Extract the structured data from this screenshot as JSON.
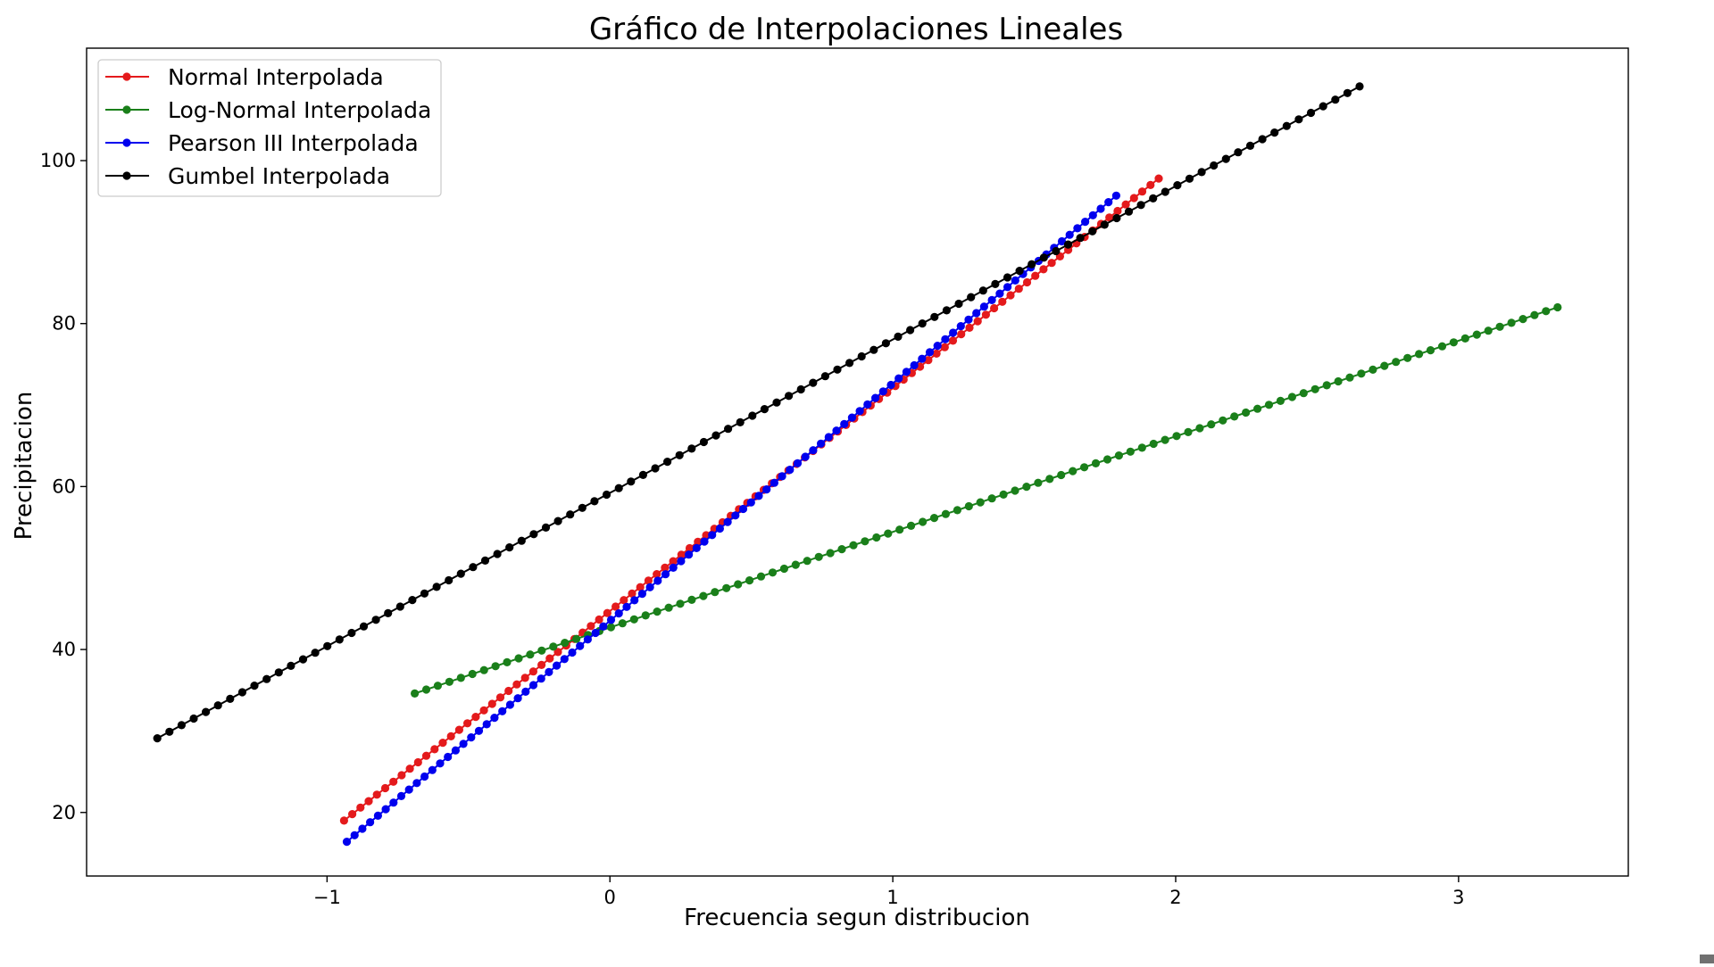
{
  "chart_data": {
    "type": "line",
    "title": "Gráfico de Interpolaciones Lineales",
    "xlabel": "Frecuencia segun distribucion",
    "ylabel": "Precipitacion",
    "xlim": [
      -1.85,
      3.6
    ],
    "ylim": [
      12.2,
      113.8
    ],
    "xticks": [
      -1,
      0,
      1,
      2,
      3
    ],
    "xtick_labels": [
      "−1",
      "0",
      "1",
      "2",
      "3"
    ],
    "yticks": [
      20,
      40,
      60,
      80,
      100
    ],
    "ytick_labels": [
      "20",
      "40",
      "60",
      "80",
      "100"
    ],
    "grid": false,
    "legend_position": "top-left",
    "points_per_series": 100,
    "series": [
      {
        "name": "Normal Interpolada",
        "color": "#e41a1c",
        "x_start": -0.94,
        "x_end": 1.94,
        "y_start": 19.0,
        "y_end": 97.8
      },
      {
        "name": "Log-Normal Interpolada",
        "color": "#1a7f1a",
        "x_start": -0.69,
        "x_end": 3.35,
        "y_start": 34.6,
        "y_end": 82.0
      },
      {
        "name": "Pearson III Interpolada",
        "color": "#0000ee",
        "x_start": -0.93,
        "x_end": 1.79,
        "y_start": 16.4,
        "y_end": 95.7
      },
      {
        "name": "Gumbel Interpolada",
        "color": "#000000",
        "x_start": -1.6,
        "x_end": 2.65,
        "y_start": 29.1,
        "y_end": 109.1
      }
    ]
  }
}
